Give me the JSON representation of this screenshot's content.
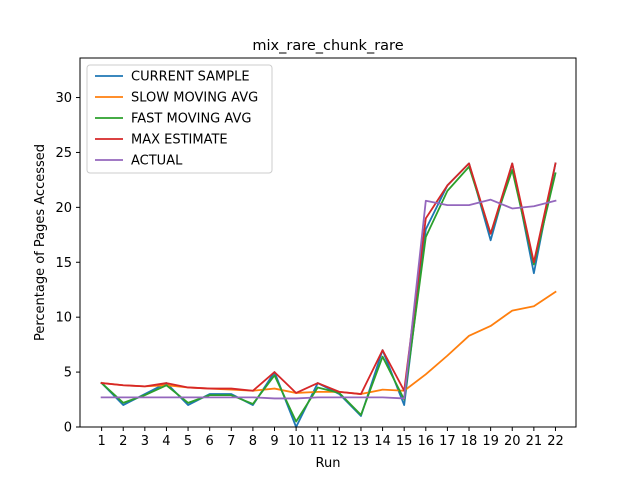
{
  "chart_data": {
    "type": "line",
    "title": "mix_rare_chunk_rare",
    "xlabel": "Run",
    "ylabel": "Percentage of Pages Accessed",
    "xlim": [
      0.0,
      22.95
    ],
    "ylim": [
      0,
      33.6
    ],
    "yticks": [
      0,
      5,
      10,
      15,
      20,
      25,
      30
    ],
    "x": [
      1,
      2,
      3,
      4,
      5,
      6,
      7,
      8,
      9,
      10,
      11,
      12,
      13,
      14,
      15,
      16,
      17,
      18,
      19,
      20,
      21,
      22
    ],
    "grid": false,
    "legend_position": "top-left",
    "series": [
      {
        "name": "CURRENT SAMPLE",
        "color": "#1f77b4",
        "values": [
          4.0,
          2.0,
          3.0,
          4.0,
          2.0,
          3.0,
          3.0,
          2.0,
          5.0,
          0.0,
          4.0,
          3.0,
          1.0,
          7.0,
          2.0,
          18.0,
          22.0,
          24.0,
          17.0,
          24.0,
          14.0,
          24.0
        ]
      },
      {
        "name": "SLOW MOVING AVG",
        "color": "#ff7f0e",
        "values": [
          4.0,
          3.8,
          3.7,
          3.8,
          3.6,
          3.5,
          3.4,
          3.3,
          3.5,
          3.1,
          3.2,
          3.2,
          3.0,
          3.4,
          3.3,
          4.8,
          6.5,
          8.3,
          9.2,
          10.6,
          11.0,
          12.3
        ]
      },
      {
        "name": "FAST MOVING AVG",
        "color": "#2ca02c",
        "values": [
          4.0,
          2.2,
          2.9,
          3.8,
          2.2,
          2.9,
          2.9,
          2.1,
          4.7,
          0.5,
          3.6,
          3.1,
          1.1,
          6.4,
          2.5,
          17.3,
          21.5,
          23.7,
          17.6,
          23.4,
          14.8,
          23.1
        ]
      },
      {
        "name": "MAX ESTIMATE",
        "color": "#d62728",
        "values": [
          4.0,
          3.8,
          3.7,
          4.0,
          3.6,
          3.5,
          3.5,
          3.3,
          5.0,
          3.1,
          4.0,
          3.2,
          3.0,
          7.0,
          3.3,
          19.0,
          22.0,
          24.0,
          17.6,
          24.0,
          15.0,
          24.0
        ]
      },
      {
        "name": "ACTUAL",
        "color": "#9467bd",
        "values": [
          2.7,
          2.7,
          2.7,
          2.7,
          2.7,
          2.7,
          2.7,
          2.7,
          2.6,
          2.6,
          2.7,
          2.7,
          2.7,
          2.7,
          2.6,
          20.6,
          20.2,
          20.2,
          20.7,
          19.9,
          20.1,
          20.6
        ]
      }
    ]
  }
}
